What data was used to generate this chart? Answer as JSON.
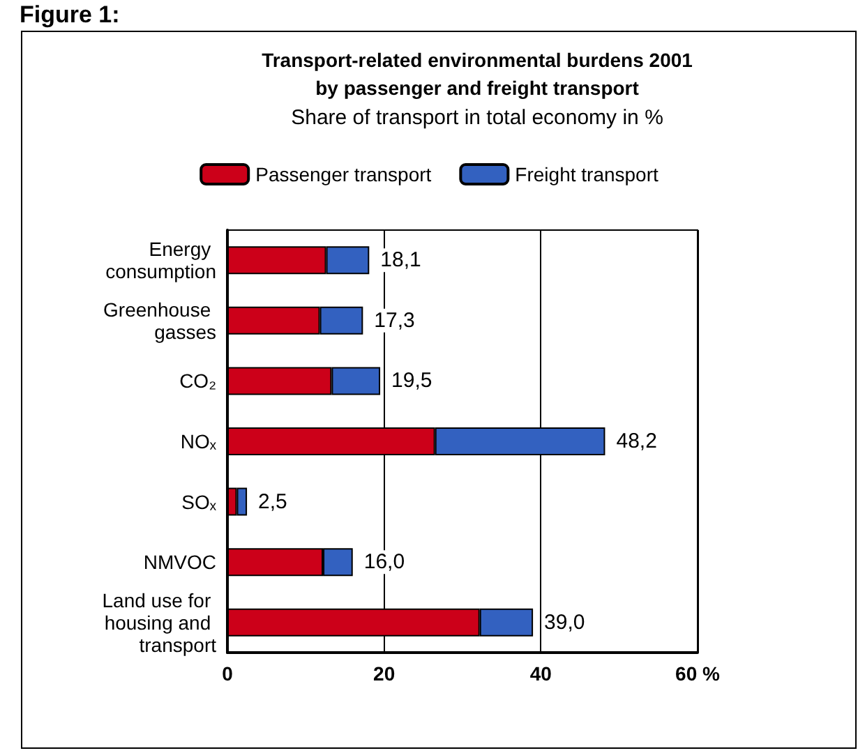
{
  "chart_data": {
    "type": "bar",
    "orientation": "horizontal",
    "stacked": true,
    "title": "Transport-related environmental burdens 2001\nby passenger and freight transport",
    "subtitle": "Share of transport in total economy in %",
    "annotations": [
      "Figure 1:"
    ],
    "categories": [
      "Energy consumption",
      "Greenhouse gasses",
      "CO₂",
      "NOₓ",
      "SOₓ",
      "NMVOC",
      "Land use for housing and transport"
    ],
    "series": [
      {
        "name": "Passenger transport",
        "color": "#cc0019",
        "values": [
          12.6,
          11.8,
          13.3,
          26.5,
          1.2,
          12.2,
          32.2
        ]
      },
      {
        "name": "Freight transport",
        "color": "#3361c0",
        "values": [
          5.5,
          5.5,
          6.2,
          21.7,
          1.3,
          3.8,
          6.8
        ]
      }
    ],
    "totals": [
      "18,1",
      "17,3",
      "19,5",
      "48,2",
      "2,5",
      "16,0",
      "39,0"
    ],
    "xlim": [
      0,
      60
    ],
    "xticks": [
      0,
      20,
      40,
      {
        "value": 60,
        "label": "60 %"
      }
    ],
    "grid": "x",
    "legend": "top"
  }
}
